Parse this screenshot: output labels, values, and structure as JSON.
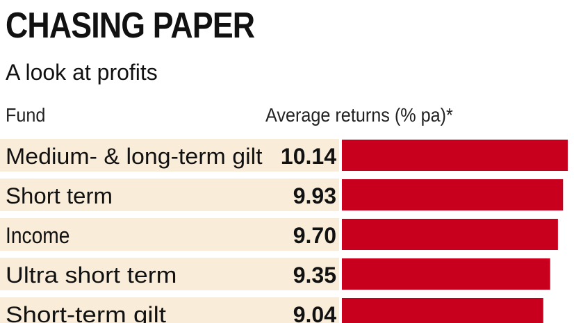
{
  "title": "CHASING PAPER",
  "subtitle": "A look at profits",
  "columns": {
    "fund": "Fund",
    "returns": "Average returns (% pa)*"
  },
  "colors": {
    "bar": "#c8001e",
    "row_background": "#f9ecd9"
  },
  "chart_data": {
    "type": "bar",
    "orientation": "horizontal",
    "categories": [
      "Medium- & long-term gilt",
      "Short term",
      "Income",
      "Ultra short term",
      "Short-term gilt"
    ],
    "values": [
      10.14,
      9.93,
      9.7,
      9.35,
      9.04
    ],
    "value_labels": [
      "10.14",
      "9.93",
      "9.70",
      "9.35",
      "9.04"
    ],
    "xlabel": "Average returns (% pa)*",
    "ylabel": "Fund",
    "xlim": [
      0,
      10.14
    ]
  }
}
